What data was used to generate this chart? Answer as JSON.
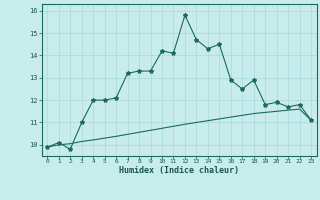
{
  "xlabel": "Humidex (Indice chaleur)",
  "background_color": "#c8ecec",
  "line_color": "#1a6b5a",
  "grid_color": "#a8d8d8",
  "x_values": [
    0,
    1,
    2,
    3,
    4,
    5,
    6,
    7,
    8,
    9,
    10,
    11,
    12,
    13,
    14,
    15,
    16,
    17,
    18,
    19,
    20,
    21,
    22,
    23
  ],
  "y_curve": [
    9.9,
    10.1,
    9.8,
    11.0,
    12.0,
    12.0,
    12.1,
    13.2,
    13.3,
    13.3,
    14.2,
    14.1,
    15.8,
    14.7,
    14.3,
    14.5,
    12.9,
    12.5,
    12.9,
    11.8,
    11.9,
    11.7,
    11.8,
    11.1
  ],
  "y_line": [
    9.9,
    10.0,
    10.05,
    10.15,
    10.22,
    10.3,
    10.38,
    10.47,
    10.56,
    10.65,
    10.74,
    10.83,
    10.92,
    11.0,
    11.08,
    11.16,
    11.24,
    11.32,
    11.4,
    11.45,
    11.5,
    11.55,
    11.6,
    11.1
  ],
  "ylim": [
    9.5,
    16.3
  ],
  "xlim": [
    -0.5,
    23.5
  ],
  "yticks": [
    10,
    11,
    12,
    13,
    14,
    15,
    16
  ],
  "xticks": [
    0,
    1,
    2,
    3,
    4,
    5,
    6,
    7,
    8,
    9,
    10,
    11,
    12,
    13,
    14,
    15,
    16,
    17,
    18,
    19,
    20,
    21,
    22,
    23
  ],
  "tick_color": "#1a5a4a",
  "label_color": "#1a5a4a"
}
